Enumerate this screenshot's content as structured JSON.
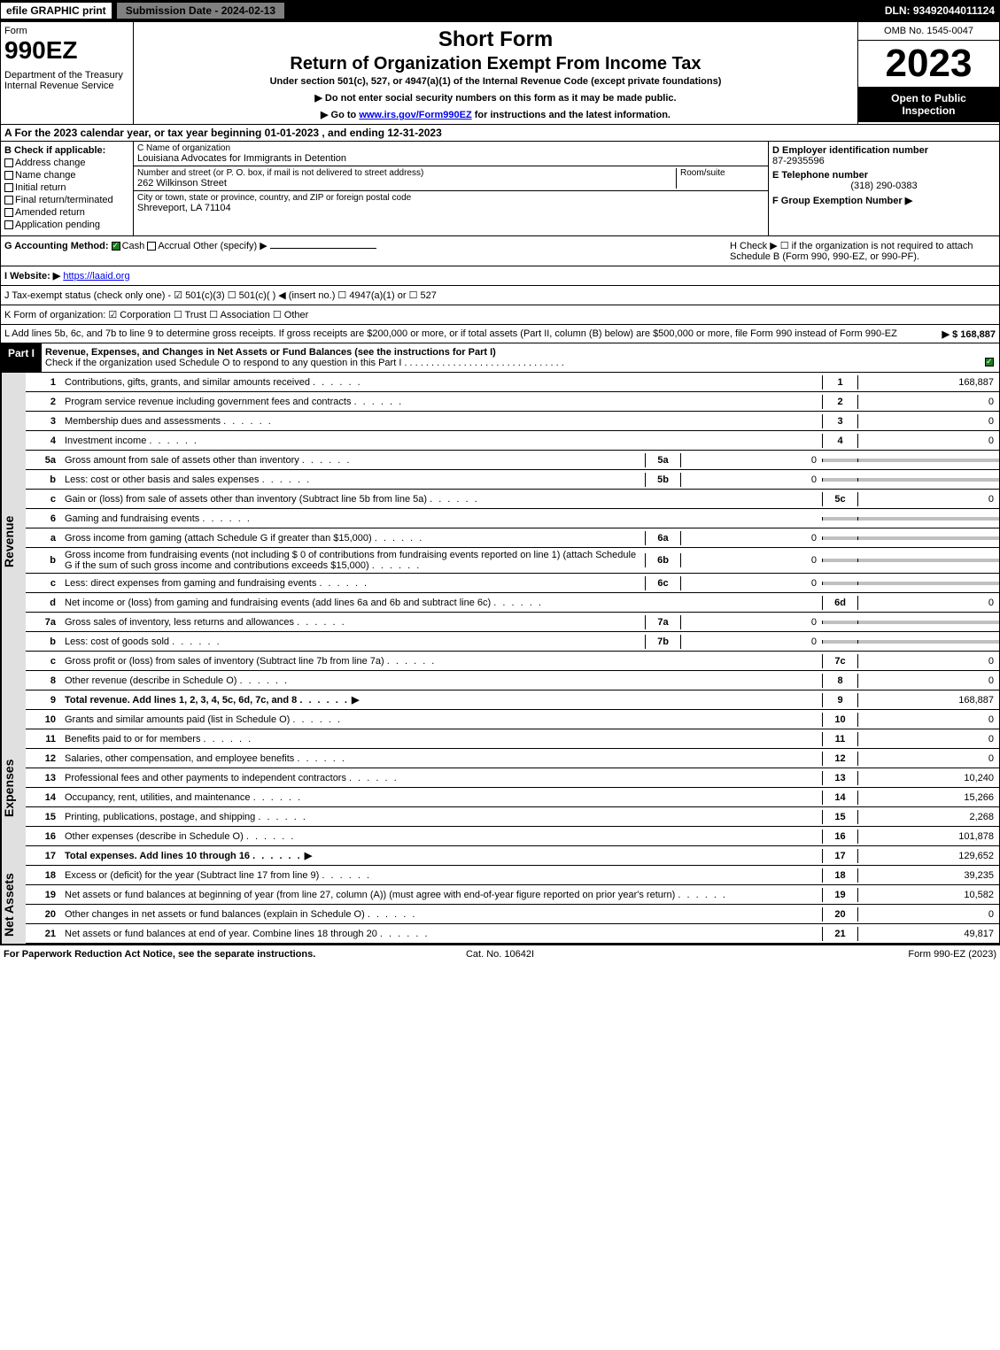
{
  "top": {
    "efile": "efile GRAPHIC print",
    "submission": "Submission Date - 2024-02-13",
    "dln": "DLN: 93492044011124"
  },
  "header": {
    "form_label": "Form",
    "form_number": "990EZ",
    "dept": "Department of the Treasury\nInternal Revenue Service",
    "title1": "Short Form",
    "title2": "Return of Organization Exempt From Income Tax",
    "subtitle": "Under section 501(c), 527, or 4947(a)(1) of the Internal Revenue Code (except private foundations)",
    "note1": "▶ Do not enter social security numbers on this form as it may be made public.",
    "note2_pre": "▶ Go to ",
    "note2_link": "www.irs.gov/Form990EZ",
    "note2_post": " for instructions and the latest information.",
    "omb": "OMB No. 1545-0047",
    "year": "2023",
    "open": "Open to Public Inspection"
  },
  "a": "A  For the 2023 calendar year, or tax year beginning 01-01-2023 , and ending 12-31-2023",
  "b": {
    "header": "B  Check if applicable:",
    "items": [
      "Address change",
      "Name change",
      "Initial return",
      "Final return/terminated",
      "Amended return",
      "Application pending"
    ]
  },
  "c": {
    "name_label": "C Name of organization",
    "name": "Louisiana Advocates for Immigrants in Detention",
    "street_label": "Number and street (or P. O. box, if mail is not delivered to street address)",
    "room_label": "Room/suite",
    "street": "262 Wilkinson Street",
    "city_label": "City or town, state or province, country, and ZIP or foreign postal code",
    "city": "Shreveport, LA  71104"
  },
  "d": {
    "ein_label": "D Employer identification number",
    "ein": "87-2935596",
    "phone_label": "E Telephone number",
    "phone": "(318) 290-0383",
    "group_label": "F Group Exemption Number  ▶"
  },
  "g": {
    "label": "G Accounting Method:",
    "cash": "Cash",
    "accrual": "Accrual",
    "other": "Other (specify) ▶"
  },
  "h": "H  Check ▶ ☐ if the organization is not required to attach Schedule B (Form 990, 990-EZ, or 990-PF).",
  "i": {
    "label": "I Website: ▶",
    "url": "https://laaid.org"
  },
  "j": "J Tax-exempt status (check only one) - ☑ 501(c)(3) ☐ 501(c)(  ) ◀ (insert no.) ☐ 4947(a)(1) or ☐ 527",
  "k": "K Form of organization: ☑ Corporation  ☐ Trust  ☐ Association  ☐ Other",
  "l": {
    "text": "L Add lines 5b, 6c, and 7b to line 9 to determine gross receipts. If gross receipts are $200,000 or more, or if total assets (Part II, column (B) below) are $500,000 or more, file Form 990 instead of Form 990-EZ",
    "amount": "▶ $ 168,887"
  },
  "part1": {
    "label": "Part I",
    "title": "Revenue, Expenses, and Changes in Net Assets or Fund Balances (see the instructions for Part I)",
    "check": "Check if the organization used Schedule O to respond to any question in this Part I"
  },
  "revenue": {
    "side": "Revenue",
    "lines": [
      {
        "num": "1",
        "desc": "Contributions, gifts, grants, and similar amounts received",
        "code": "1",
        "val": "168,887"
      },
      {
        "num": "2",
        "desc": "Program service revenue including government fees and contracts",
        "code": "2",
        "val": "0"
      },
      {
        "num": "3",
        "desc": "Membership dues and assessments",
        "code": "3",
        "val": "0"
      },
      {
        "num": "4",
        "desc": "Investment income",
        "code": "4",
        "val": "0"
      },
      {
        "num": "5a",
        "desc": "Gross amount from sale of assets other than inventory",
        "sub": "5a",
        "subval": "0"
      },
      {
        "num": "b",
        "desc": "Less: cost or other basis and sales expenses",
        "sub": "5b",
        "subval": "0"
      },
      {
        "num": "c",
        "desc": "Gain or (loss) from sale of assets other than inventory (Subtract line 5b from line 5a)",
        "code": "5c",
        "val": "0"
      },
      {
        "num": "6",
        "desc": "Gaming and fundraising events"
      },
      {
        "num": "a",
        "desc": "Gross income from gaming (attach Schedule G if greater than $15,000)",
        "sub": "6a",
        "subval": "0"
      },
      {
        "num": "b",
        "desc": "Gross income from fundraising events (not including $ 0 of contributions from fundraising events reported on line 1) (attach Schedule G if the sum of such gross income and contributions exceeds $15,000)",
        "sub": "6b",
        "subval": "0",
        "wrap": true
      },
      {
        "num": "c",
        "desc": "Less: direct expenses from gaming and fundraising events",
        "sub": "6c",
        "subval": "0"
      },
      {
        "num": "d",
        "desc": "Net income or (loss) from gaming and fundraising events (add lines 6a and 6b and subtract line 6c)",
        "code": "6d",
        "val": "0"
      },
      {
        "num": "7a",
        "desc": "Gross sales of inventory, less returns and allowances",
        "sub": "7a",
        "subval": "0"
      },
      {
        "num": "b",
        "desc": "Less: cost of goods sold",
        "sub": "7b",
        "subval": "0"
      },
      {
        "num": "c",
        "desc": "Gross profit or (loss) from sales of inventory (Subtract line 7b from line 7a)",
        "code": "7c",
        "val": "0"
      },
      {
        "num": "8",
        "desc": "Other revenue (describe in Schedule O)",
        "code": "8",
        "val": "0"
      },
      {
        "num": "9",
        "desc": "Total revenue. Add lines 1, 2, 3, 4, 5c, 6d, 7c, and 8",
        "code": "9",
        "val": "168,887",
        "bold": true,
        "arrow": true
      }
    ]
  },
  "expenses": {
    "side": "Expenses",
    "lines": [
      {
        "num": "10",
        "desc": "Grants and similar amounts paid (list in Schedule O)",
        "code": "10",
        "val": "0"
      },
      {
        "num": "11",
        "desc": "Benefits paid to or for members",
        "code": "11",
        "val": "0"
      },
      {
        "num": "12",
        "desc": "Salaries, other compensation, and employee benefits",
        "code": "12",
        "val": "0"
      },
      {
        "num": "13",
        "desc": "Professional fees and other payments to independent contractors",
        "code": "13",
        "val": "10,240"
      },
      {
        "num": "14",
        "desc": "Occupancy, rent, utilities, and maintenance",
        "code": "14",
        "val": "15,266"
      },
      {
        "num": "15",
        "desc": "Printing, publications, postage, and shipping",
        "code": "15",
        "val": "2,268"
      },
      {
        "num": "16",
        "desc": "Other expenses (describe in Schedule O)",
        "code": "16",
        "val": "101,878"
      },
      {
        "num": "17",
        "desc": "Total expenses. Add lines 10 through 16",
        "code": "17",
        "val": "129,652",
        "bold": true,
        "arrow": true
      }
    ]
  },
  "netassets": {
    "side": "Net Assets",
    "lines": [
      {
        "num": "18",
        "desc": "Excess or (deficit) for the year (Subtract line 17 from line 9)",
        "code": "18",
        "val": "39,235"
      },
      {
        "num": "19",
        "desc": "Net assets or fund balances at beginning of year (from line 27, column (A)) (must agree with end-of-year figure reported on prior year's return)",
        "code": "19",
        "val": "10,582",
        "wrap": true
      },
      {
        "num": "20",
        "desc": "Other changes in net assets or fund balances (explain in Schedule O)",
        "code": "20",
        "val": "0"
      },
      {
        "num": "21",
        "desc": "Net assets or fund balances at end of year. Combine lines 18 through 20",
        "code": "21",
        "val": "49,817"
      }
    ]
  },
  "footer": {
    "left": "For Paperwork Reduction Act Notice, see the separate instructions.",
    "mid": "Cat. No. 10642I",
    "right": "Form 990-EZ (2023)"
  }
}
